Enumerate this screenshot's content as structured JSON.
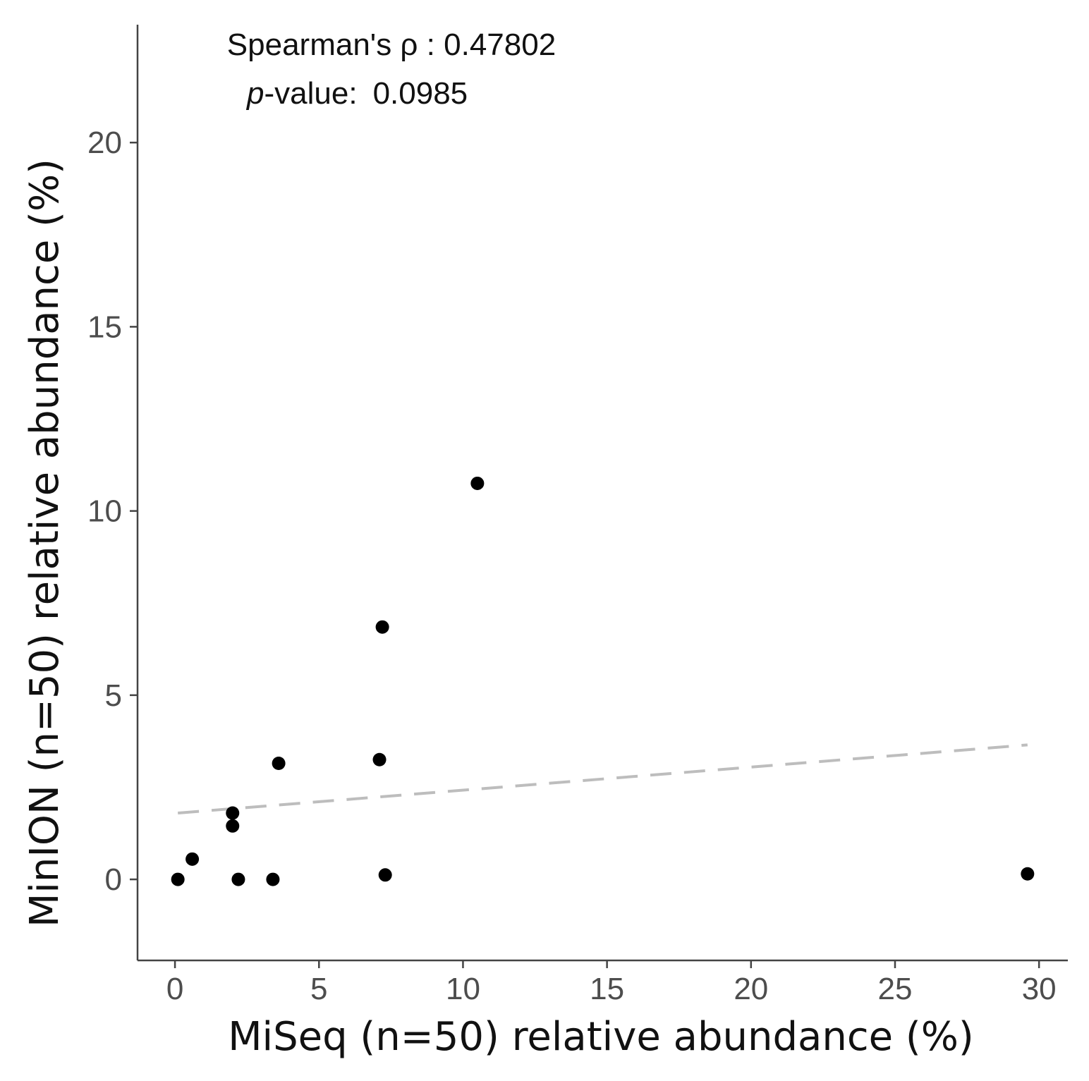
{
  "chart_data": {
    "type": "scatter",
    "title": "",
    "xlabel": "MiSeq (n=50) relative abundance (%)",
    "ylabel": "MinION (n=50) relative abundance (%)",
    "xlim": [
      -1.3,
      31.0
    ],
    "ylim": [
      -2.2,
      23.2
    ],
    "xticks": [
      0,
      5,
      10,
      15,
      20,
      25,
      30
    ],
    "yticks": [
      0,
      5,
      10,
      15,
      20
    ],
    "grid": false,
    "points": [
      {
        "x": 0.1,
        "y": 0.0
      },
      {
        "x": 0.6,
        "y": 0.55
      },
      {
        "x": 2.0,
        "y": 1.8
      },
      {
        "x": 2.0,
        "y": 1.45
      },
      {
        "x": 2.2,
        "y": 0.0
      },
      {
        "x": 3.4,
        "y": 0.0
      },
      {
        "x": 3.6,
        "y": 3.15
      },
      {
        "x": 7.1,
        "y": 3.25
      },
      {
        "x": 7.2,
        "y": 6.85
      },
      {
        "x": 7.3,
        "y": 0.12
      },
      {
        "x": 10.5,
        "y": 10.75
      },
      {
        "x": 29.6,
        "y": 0.15
      }
    ],
    "trendline": {
      "style": "dashed",
      "x": [
        0.1,
        29.6
      ],
      "y": [
        1.8,
        3.65
      ]
    },
    "annotations": {
      "spearman_label": "Spearman's ρ : 0.47802",
      "p_italic": "p",
      "p_label": "-value:",
      "p_value": "0.0985"
    }
  }
}
